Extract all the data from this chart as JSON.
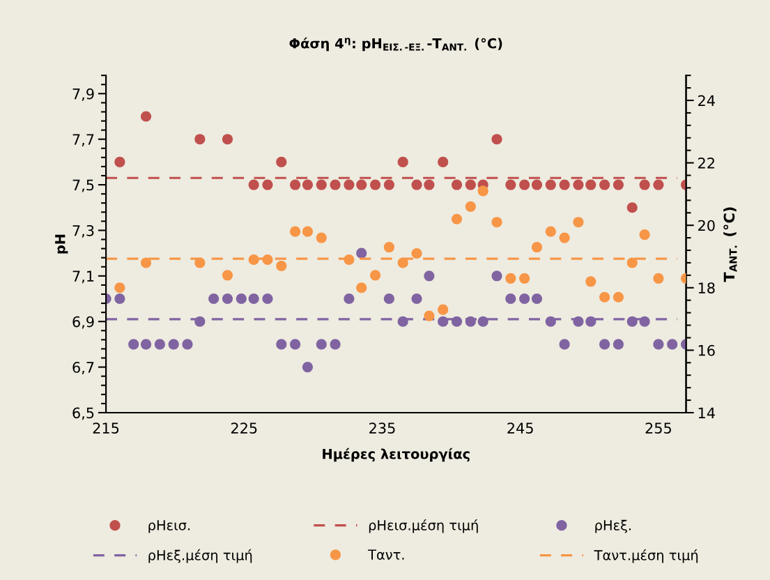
{
  "chart_data": {
    "type": "scatter",
    "title": "Φάση 4$^{η}$: pH$_{ΕΙΣ.‐ΕΞ.}$-T$_{ΑΝΤ.}$ (°C)",
    "xlabel": "Ημέρες λειτουργίας",
    "ylabel": "pH",
    "y2label": "T$_{ΑΝΤ.}$ (°C)",
    "x": [
      215.0,
      216.0,
      217.0,
      217.9,
      218.9,
      219.9,
      220.9,
      221.8,
      222.8,
      223.8,
      224.8,
      225.7,
      226.7,
      227.7,
      228.7,
      229.6,
      230.6,
      231.6,
      232.6,
      233.5,
      234.5,
      235.5,
      236.5,
      237.5,
      238.4,
      239.4,
      240.4,
      241.4,
      242.3,
      243.3,
      244.3,
      245.3,
      246.2,
      247.2,
      248.2,
      249.2,
      250.1,
      251.1,
      252.1,
      253.1,
      254.0,
      255.0,
      256.0,
      257.0
    ],
    "series": [
      {
        "name": "ρHεισ.",
        "marker": "circle",
        "color": "#c0504d",
        "values": [
          null,
          7.6,
          null,
          7.8,
          null,
          null,
          null,
          7.7,
          null,
          7.7,
          null,
          7.5,
          7.5,
          7.6,
          7.5,
          7.5,
          7.5,
          7.5,
          7.5,
          7.5,
          7.5,
          7.5,
          7.6,
          7.5,
          7.5,
          7.6,
          7.5,
          7.5,
          7.5,
          7.7,
          7.5,
          7.5,
          7.5,
          7.5,
          7.5,
          7.5,
          7.5,
          7.5,
          7.5,
          7.4,
          7.5,
          7.5,
          null,
          7.5
        ]
      },
      {
        "name": "ρHεξ.",
        "marker": "circle",
        "color": "#8064a2",
        "values": [
          7.0,
          7.0,
          6.8,
          6.8,
          6.8,
          6.8,
          6.8,
          6.9,
          7.0,
          7.0,
          7.0,
          7.0,
          7.0,
          6.8,
          6.8,
          6.7,
          6.8,
          6.8,
          7.0,
          7.2,
          null,
          7.0,
          6.9,
          7.0,
          7.1,
          6.9,
          6.9,
          6.9,
          6.9,
          7.1,
          7.0,
          7.0,
          7.0,
          6.9,
          6.8,
          6.9,
          6.9,
          6.8,
          6.8,
          6.9,
          6.9,
          6.8,
          6.8,
          6.8
        ]
      },
      {
        "name": "Ταντ.",
        "marker": "circle",
        "axis": "y2",
        "color": "#f79646",
        "values": [
          null,
          18.0,
          null,
          18.8,
          null,
          null,
          null,
          18.8,
          null,
          18.4,
          null,
          18.9,
          18.9,
          18.7,
          19.8,
          19.8,
          19.6,
          null,
          18.9,
          18.0,
          18.4,
          19.3,
          18.8,
          19.1,
          17.1,
          17.3,
          20.2,
          20.6,
          21.1,
          20.1,
          18.3,
          18.3,
          19.3,
          19.8,
          19.6,
          20.1,
          18.2,
          17.7,
          17.7,
          18.8,
          19.7,
          18.3,
          null,
          18.3
        ]
      }
    ],
    "ref_lines": [
      {
        "axis": "y",
        "value": 7.53,
        "label": "ρHεισ.μέση τιμή",
        "color": "#c0504d",
        "line_style": "dashed"
      },
      {
        "axis": "y",
        "value": 6.91,
        "label": "ρHεξ.μέση τιμή",
        "color": "#8064a2",
        "line_style": "dashed"
      },
      {
        "axis": "y2",
        "value": 18.93,
        "label": "Ταντ.μέση τιμή",
        "color": "#f79646",
        "line_style": "dashed"
      }
    ],
    "xlim": [
      215,
      257
    ],
    "xticks": [
      215,
      225,
      235,
      245,
      255
    ],
    "ylim": [
      6.5,
      7.98
    ],
    "yticks": [
      {
        "value": 6.5,
        "label": "6,5"
      },
      {
        "value": 6.54,
        "label": null
      },
      {
        "value": 6.58,
        "label": null
      },
      {
        "value": 6.62,
        "label": null
      },
      {
        "value": 6.66,
        "label": null
      },
      {
        "value": 6.7,
        "label": "6,7"
      },
      {
        "value": 6.74,
        "label": null
      },
      {
        "value": 6.78,
        "label": null
      },
      {
        "value": 6.82,
        "label": null
      },
      {
        "value": 6.86,
        "label": null
      },
      {
        "value": 6.9,
        "label": "6,9"
      },
      {
        "value": 6.94,
        "label": null
      },
      {
        "value": 6.98,
        "label": null
      },
      {
        "value": 7.02,
        "label": null
      },
      {
        "value": 7.06,
        "label": null
      },
      {
        "value": 7.1,
        "label": "7,1"
      },
      {
        "value": 7.14,
        "label": null
      },
      {
        "value": 7.18,
        "label": null
      },
      {
        "value": 7.22,
        "label": null
      },
      {
        "value": 7.26,
        "label": null
      },
      {
        "value": 7.3,
        "label": "7,3"
      },
      {
        "value": 7.34,
        "label": null
      },
      {
        "value": 7.38,
        "label": null
      },
      {
        "value": 7.42,
        "label": null
      },
      {
        "value": 7.46,
        "label": null
      },
      {
        "value": 7.5,
        "label": "7,5"
      },
      {
        "value": 7.54,
        "label": null
      },
      {
        "value": 7.58,
        "label": null
      },
      {
        "value": 7.62,
        "label": null
      },
      {
        "value": 7.66,
        "label": null
      },
      {
        "value": 7.7,
        "label": "7,7"
      },
      {
        "value": 7.74,
        "label": null
      },
      {
        "value": 7.78,
        "label": null
      },
      {
        "value": 7.82,
        "label": null
      },
      {
        "value": 7.86,
        "label": null
      },
      {
        "value": 7.9,
        "label": "7,9"
      },
      {
        "value": 7.94,
        "label": null
      },
      {
        "value": 7.98,
        "label": null
      }
    ],
    "y2lim": [
      14,
      24.8
    ],
    "y2ticks": [
      14,
      {
        "value": 14.4,
        "label": null
      },
      {
        "value": 14.8,
        "label": null
      },
      {
        "value": 15.2,
        "label": null
      },
      {
        "value": 15.6,
        "label": null
      },
      16,
      {
        "value": 16.4,
        "label": null
      },
      {
        "value": 16.8,
        "label": null
      },
      {
        "value": 17.2,
        "label": null
      },
      {
        "value": 17.6,
        "label": null
      },
      18,
      {
        "value": 18.4,
        "label": null
      },
      {
        "value": 18.8,
        "label": null
      },
      {
        "value": 19.2,
        "label": null
      },
      {
        "value": 19.6,
        "label": null
      },
      20,
      {
        "value": 20.4,
        "label": null
      },
      {
        "value": 20.8,
        "label": null
      },
      {
        "value": 21.2,
        "label": null
      },
      {
        "value": 21.6,
        "label": null
      },
      22,
      {
        "value": 22.4,
        "label": null
      },
      {
        "value": 22.8,
        "label": null
      },
      {
        "value": 23.2,
        "label": null
      },
      {
        "value": 23.6,
        "label": null
      },
      24,
      {
        "value": 24.4,
        "label": null
      },
      {
        "value": 24.8,
        "label": null
      }
    ],
    "grid": false,
    "legend": "bottom"
  }
}
